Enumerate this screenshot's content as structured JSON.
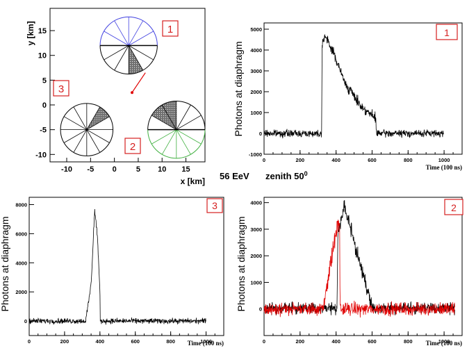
{
  "caption": {
    "energy": "56 EeV",
    "zenith": "zenith 50",
    "zenith_sup": "0"
  },
  "colors": {
    "trace": "#000000",
    "trace2": "#e00000",
    "blue": "#1010c8",
    "badge": "#d62020",
    "eye_north": "#4040e0",
    "eye_southeast": "#40b040",
    "shower": "#e00000"
  },
  "chart_data": [
    {
      "id": "map",
      "type": "scatter",
      "xlabel": "x [km]",
      "ylabel": "y [km]",
      "xlim": [
        -13.5,
        19
      ],
      "ylim": [
        -11.5,
        19.5
      ],
      "xticks": [
        -10,
        -5,
        0,
        5,
        10,
        15
      ],
      "yticks": [
        -10,
        -5,
        0,
        5,
        10,
        15
      ],
      "eyes": [
        {
          "label": "1",
          "center": [
            3,
            12
          ],
          "radius": 6,
          "color": "blue-upper",
          "shaded_sector": [
            -90,
            -60
          ]
        },
        {
          "label": "3",
          "center": [
            -5.8,
            -5
          ],
          "radius": 5.5,
          "shaded_sector": [
            30,
            60
          ]
        },
        {
          "label": "2",
          "center": [
            13,
            -5
          ],
          "radius": 6,
          "color": "green-lower",
          "shaded_sector": [
            90,
            150
          ]
        }
      ],
      "shower_track": {
        "x": [
          3.7,
          6.5
        ],
        "y": [
          2.5,
          6.5
        ]
      }
    },
    {
      "id": "eye1",
      "type": "line",
      "badge": "1",
      "xlabel": "Time (100 ns)",
      "ylabel": "Photons at diaphragm",
      "xlim": [
        0,
        1100
      ],
      "ylim": [
        -1000,
        5300
      ],
      "xticks": [
        0,
        200,
        400,
        600,
        800,
        1000
      ],
      "yticks": [
        -1000,
        0,
        1000,
        2000,
        3000,
        4000,
        5000
      ],
      "series": [
        {
          "color": "black",
          "noise": 120,
          "envelope": [
            [
              0,
              0
            ],
            [
              320,
              0
            ],
            [
              322,
              4300
            ],
            [
              335,
              4700
            ],
            [
              380,
              4000
            ],
            [
              450,
              2400
            ],
            [
              540,
              1300
            ],
            [
              620,
              700
            ],
            [
              625,
              0
            ],
            [
              1000,
              0
            ]
          ]
        }
      ]
    },
    {
      "id": "eye3",
      "type": "line",
      "badge": "3",
      "xlabel": "Time (100 ns)",
      "ylabel": "Photons at diaphragm",
      "xlim": [
        0,
        1100
      ],
      "ylim": [
        -1000,
        8500
      ],
      "xticks": [
        0,
        200,
        400,
        600,
        800,
        1000
      ],
      "yticks": [
        0,
        2000,
        4000,
        6000,
        8000
      ],
      "series": [
        {
          "color": "black",
          "noise": 130,
          "envelope": [
            [
              0,
              0
            ],
            [
              320,
              0
            ],
            [
              350,
              2500
            ],
            [
              370,
              7600
            ],
            [
              385,
              6000
            ],
            [
              400,
              2000
            ],
            [
              402,
              0
            ],
            [
              1000,
              0
            ]
          ]
        }
      ]
    },
    {
      "id": "eye2",
      "type": "line",
      "badge": "2",
      "xlabel": "Time (100 ns)",
      "ylabel": "Photons at diaphragm",
      "xlim": [
        0,
        1100
      ],
      "ylim": [
        -1000,
        4200
      ],
      "xticks": [
        0,
        200,
        400,
        600,
        800,
        1000
      ],
      "yticks": [
        0,
        1000,
        2000,
        3000,
        4000
      ],
      "series": [
        {
          "color": "black",
          "noise": 150,
          "envelope": [
            [
              0,
              0
            ],
            [
              405,
              0
            ],
            [
              410,
              2800
            ],
            [
              445,
              3800
            ],
            [
              480,
              3000
            ],
            [
              560,
              1000
            ],
            [
              600,
              0
            ],
            [
              1060,
              0
            ]
          ]
        },
        {
          "color": "red",
          "noise": 170,
          "envelope": [
            [
              0,
              0
            ],
            [
              330,
              0
            ],
            [
              345,
              800
            ],
            [
              370,
              1700
            ],
            [
              400,
              2900
            ],
            [
              420,
              3300
            ],
            [
              422,
              0
            ],
            [
              1060,
              0
            ]
          ]
        }
      ]
    }
  ]
}
